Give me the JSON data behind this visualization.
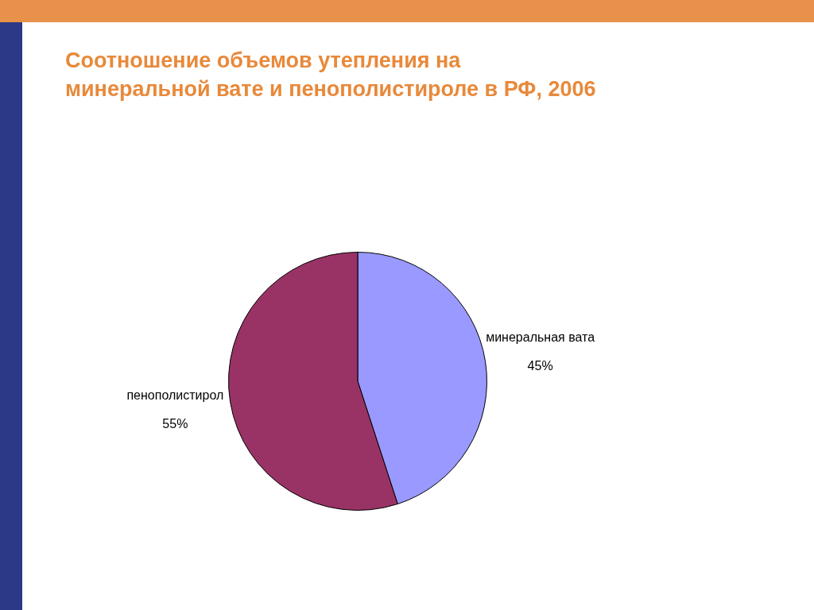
{
  "chart_data": {
    "type": "pie",
    "title": "Соотношение объемов утепления на минеральной вате и пенополистироле в РФ, 2006",
    "categories": [
      "минеральная вата",
      "пенополистирол"
    ],
    "values": [
      45,
      55
    ],
    "value_labels": [
      "45%",
      "55%"
    ],
    "colors": [
      "#9999ff",
      "#993366"
    ],
    "legend": false
  }
}
